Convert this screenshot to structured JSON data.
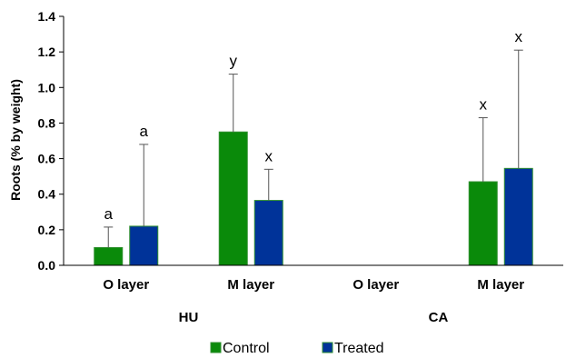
{
  "chart_data": {
    "type": "bar",
    "ylabel": "Roots (% by weight)",
    "ylim": [
      0,
      1.4
    ],
    "yticks": [
      "0.0",
      "0.2",
      "0.4",
      "0.6",
      "0.8",
      "1.0",
      "1.2",
      "1.4"
    ],
    "categories": [
      "O layer",
      "M layer",
      "O layer",
      "M layer"
    ],
    "groups": [
      "HU",
      "CA"
    ],
    "series": [
      {
        "name": "Control",
        "color": "#0a8a0a",
        "values": [
          0.1,
          0.75,
          null,
          0.47
        ],
        "error": [
          0.215,
          1.075,
          null,
          0.83
        ],
        "labels": [
          "a",
          "y",
          "",
          "x"
        ]
      },
      {
        "name": "Treated",
        "color": "#003399",
        "values": [
          0.22,
          0.365,
          null,
          0.545
        ],
        "error": [
          0.68,
          0.54,
          null,
          1.21
        ],
        "labels": [
          "a",
          "x",
          "",
          "x"
        ]
      }
    ],
    "legend_position": "bottom",
    "grid": false
  }
}
